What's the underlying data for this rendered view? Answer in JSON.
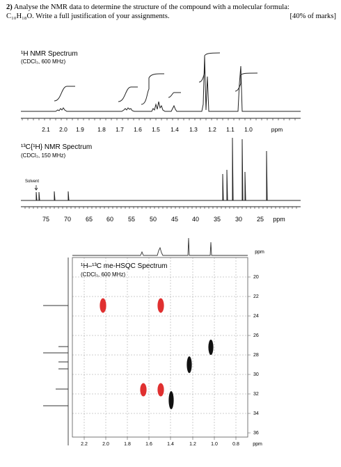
{
  "question": {
    "number": "2)",
    "line1": "Analyse the NMR data to determine the structure of the compound with a molecular formula:",
    "line2": "C₁₀H₁₈O. Write a full justification of your assignments.",
    "marks": "[40% of marks]"
  },
  "h1": {
    "title": "¹H NMR Spectrum",
    "subtitle": "(CDCl₃, 600 MHz)",
    "ticks": [
      "2.1",
      "2.0",
      "1.9",
      "1.8",
      "1.7",
      "1.6",
      "1.5",
      "1.4",
      "1.3",
      "1.2",
      "1.1",
      "1.0"
    ],
    "unit": "ppm"
  },
  "c13": {
    "title": "¹³C{¹H} NMR Spectrum",
    "subtitle": "(CDCl₃, 150 MHz)",
    "solvent": "Solvent",
    "ticks": [
      "75",
      "70",
      "65",
      "60",
      "55",
      "50",
      "45",
      "40",
      "35",
      "30",
      "25"
    ],
    "unit": "ppm"
  },
  "hsqc": {
    "title": "¹H–¹³C me-HSQC Spectrum",
    "subtitle": "(CDCl₃, 600 MHz)",
    "x_ticks": [
      "2.2",
      "2.0",
      "1.8",
      "1.6",
      "1.4",
      "1.2",
      "1.0",
      "0.8"
    ],
    "x_unit": "ppm",
    "y_ticks": [
      "20",
      "22",
      "24",
      "26",
      "28",
      "30",
      "32",
      "34",
      "36"
    ],
    "y_unit": "ppm",
    "colors": {
      "positive": "#e03030",
      "negative": "#111111"
    }
  }
}
